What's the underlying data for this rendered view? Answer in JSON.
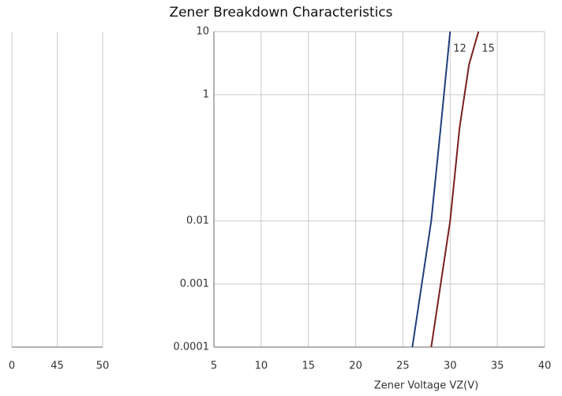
{
  "chart_data": [
    {
      "type": "line",
      "title": "Zener Breakdown Characteristics",
      "x_label": "Zener Voltage    VZ(V)",
      "x": [
        26,
        27,
        28,
        29,
        30,
        31,
        32,
        33
      ],
      "series": [
        {
          "name": "12",
          "color": "#1f3f7a",
          "values": [
            0.0001,
            0.001,
            0.01,
            0.3,
            10,
            null,
            null,
            null
          ]
        },
        {
          "name": "15",
          "color": "#7a1f1f",
          "values": [
            null,
            null,
            0.0001,
            0.001,
            0.01,
            0.3,
            3,
            10
          ]
        }
      ],
      "xlim": [
        5,
        40
      ],
      "xticks": [
        5,
        10,
        15,
        20,
        25,
        30,
        35,
        40
      ],
      "ylim": [
        0.0001,
        10
      ],
      "yticks": [
        0.0001,
        0.001,
        0.01,
        1,
        10
      ],
      "ylog": true,
      "grid": true
    },
    {
      "type": "line",
      "categories": [
        "0",
        "45",
        "50"
      ]
    }
  ]
}
